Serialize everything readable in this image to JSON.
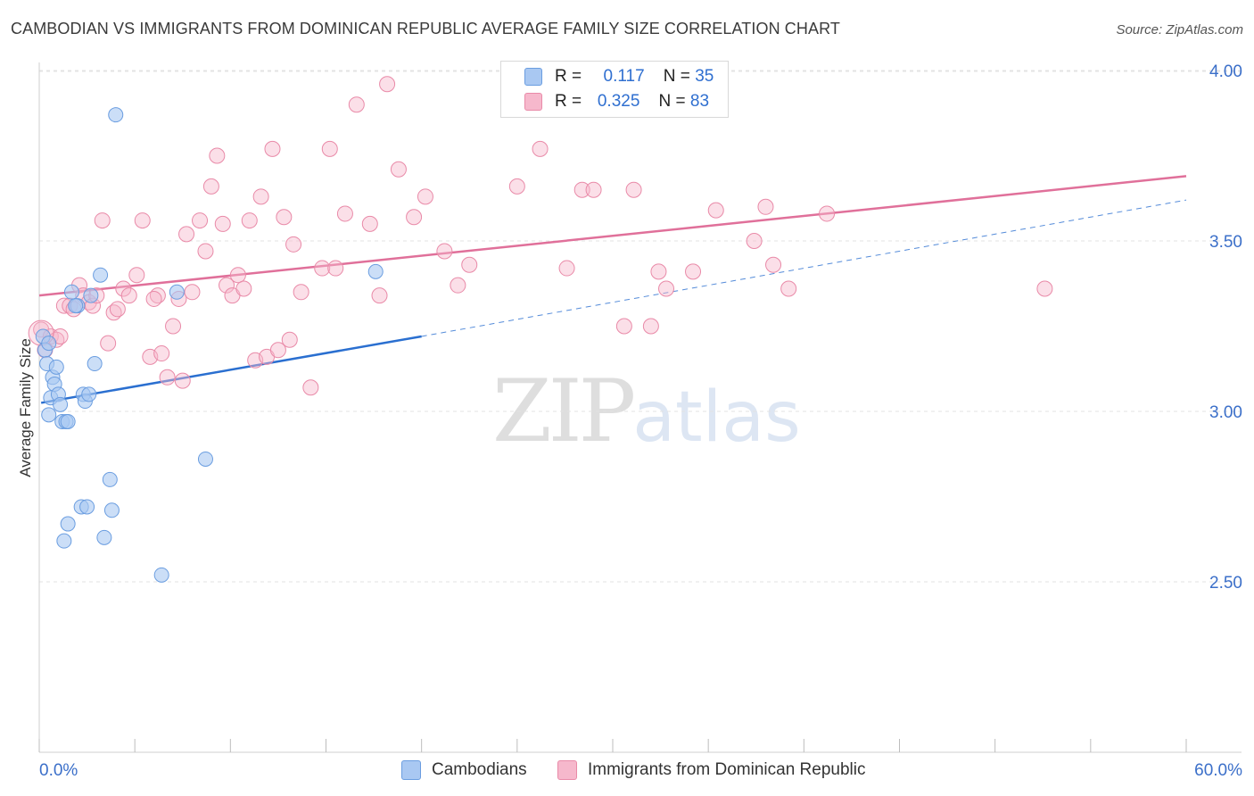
{
  "title": "CAMBODIAN VS IMMIGRANTS FROM DOMINICAN REPUBLIC AVERAGE FAMILY SIZE CORRELATION CHART",
  "source": "Source: ZipAtlas.com",
  "watermark": {
    "zip": "ZIP",
    "atlas": "atlas"
  },
  "legend": {
    "rows": [
      {
        "r_label": "R =",
        "r_value": "0.117",
        "n_label": "N =",
        "n_value": "35",
        "color": "#a9c8f2"
      },
      {
        "r_label": "R =",
        "r_value": "0.325",
        "n_label": "N =",
        "n_value": "83",
        "color": "#f6b8cc"
      }
    ]
  },
  "bottom_legend": {
    "series1": "Cambodians",
    "series2": "Immigrants from Dominican Republic"
  },
  "colors": {
    "blue_fill": "#a9c8f2",
    "blue_stroke": "#6a9de0",
    "blue_line": "#2a6fd0",
    "pink_fill": "#f6b8cc",
    "pink_stroke": "#e98aa8",
    "pink_line": "#e0709a",
    "tick_text": "#3b6fc9",
    "grid": "#e3e3e3"
  },
  "chart_data": {
    "type": "scatter",
    "title": "CAMBODIAN VS IMMIGRANTS FROM DOMINICAN REPUBLIC AVERAGE FAMILY SIZE CORRELATION CHART",
    "xlabel": "",
    "ylabel": "Average Family Size",
    "xlim": [
      0,
      60
    ],
    "ylim": [
      2.0,
      4.15
    ],
    "x_tick_labels": [
      "0.0%",
      "60.0%"
    ],
    "y_ticks": [
      2.5,
      3.0,
      3.5,
      4.0
    ],
    "y_tick_labels": [
      "2.50",
      "3.00",
      "3.50",
      "4.00"
    ],
    "grid": true,
    "legend_position": "top-center",
    "series": [
      {
        "name": "Cambodians",
        "R": 0.117,
        "N": 35,
        "trend": {
          "x0": 0.1,
          "y0": 3.025,
          "x1": 20,
          "y1": 3.22,
          "dash_to_x": 60,
          "dash_to_y": 3.62
        },
        "points": [
          [
            0.2,
            3.22
          ],
          [
            0.3,
            3.18
          ],
          [
            0.4,
            3.14
          ],
          [
            0.5,
            3.2
          ],
          [
            0.5,
            2.99
          ],
          [
            0.6,
            3.04
          ],
          [
            0.7,
            3.1
          ],
          [
            0.8,
            3.08
          ],
          [
            0.9,
            3.13
          ],
          [
            1.0,
            3.05
          ],
          [
            1.1,
            3.02
          ],
          [
            1.2,
            2.97
          ],
          [
            1.4,
            2.97
          ],
          [
            1.5,
            2.97
          ],
          [
            1.3,
            2.62
          ],
          [
            1.5,
            2.67
          ],
          [
            1.7,
            3.35
          ],
          [
            2.0,
            3.31
          ],
          [
            2.2,
            2.72
          ],
          [
            2.3,
            3.05
          ],
          [
            2.4,
            3.03
          ],
          [
            2.5,
            2.72
          ],
          [
            2.6,
            3.05
          ],
          [
            2.7,
            3.34
          ],
          [
            2.9,
            3.14
          ],
          [
            3.2,
            3.4
          ],
          [
            3.4,
            2.63
          ],
          [
            3.7,
            2.8
          ],
          [
            3.8,
            2.71
          ],
          [
            4.0,
            3.87
          ],
          [
            6.4,
            2.52
          ],
          [
            7.2,
            3.35
          ],
          [
            8.7,
            2.86
          ],
          [
            17.6,
            3.41
          ],
          [
            1.9,
            3.31
          ]
        ]
      },
      {
        "name": "Immigrants from Dominican Republic",
        "R": 0.325,
        "N": 83,
        "trend": {
          "x0": 0,
          "y0": 3.34,
          "x1": 60,
          "y1": 3.69
        },
        "points": [
          [
            0.1,
            3.24
          ],
          [
            0.3,
            3.18
          ],
          [
            0.6,
            3.22
          ],
          [
            0.9,
            3.21
          ],
          [
            1.1,
            3.22
          ],
          [
            1.3,
            3.31
          ],
          [
            1.6,
            3.31
          ],
          [
            1.8,
            3.3
          ],
          [
            2.1,
            3.37
          ],
          [
            2.3,
            3.34
          ],
          [
            2.6,
            3.32
          ],
          [
            2.8,
            3.31
          ],
          [
            3.3,
            3.56
          ],
          [
            3.6,
            3.2
          ],
          [
            3.9,
            3.29
          ],
          [
            4.1,
            3.3
          ],
          [
            4.4,
            3.36
          ],
          [
            4.7,
            3.34
          ],
          [
            5.1,
            3.4
          ],
          [
            5.4,
            3.56
          ],
          [
            5.8,
            3.16
          ],
          [
            6.2,
            3.34
          ],
          [
            6.4,
            3.17
          ],
          [
            6.7,
            3.1
          ],
          [
            7.0,
            3.25
          ],
          [
            7.3,
            3.33
          ],
          [
            7.5,
            3.09
          ],
          [
            7.7,
            3.52
          ],
          [
            8.0,
            3.35
          ],
          [
            8.4,
            3.56
          ],
          [
            8.7,
            3.47
          ],
          [
            9.0,
            3.66
          ],
          [
            9.3,
            3.75
          ],
          [
            9.6,
            3.55
          ],
          [
            9.8,
            3.37
          ],
          [
            10.1,
            3.34
          ],
          [
            10.4,
            3.4
          ],
          [
            10.7,
            3.36
          ],
          [
            11.0,
            3.56
          ],
          [
            11.3,
            3.15
          ],
          [
            11.6,
            3.63
          ],
          [
            11.9,
            3.16
          ],
          [
            12.2,
            3.77
          ],
          [
            12.5,
            3.18
          ],
          [
            12.8,
            3.57
          ],
          [
            13.1,
            3.21
          ],
          [
            13.3,
            3.49
          ],
          [
            13.7,
            3.35
          ],
          [
            14.2,
            3.07
          ],
          [
            14.8,
            3.42
          ],
          [
            15.2,
            3.77
          ],
          [
            15.5,
            3.42
          ],
          [
            16.0,
            3.58
          ],
          [
            16.6,
            3.9
          ],
          [
            17.3,
            3.55
          ],
          [
            17.8,
            3.34
          ],
          [
            18.2,
            3.96
          ],
          [
            18.8,
            3.71
          ],
          [
            19.6,
            3.57
          ],
          [
            20.2,
            3.63
          ],
          [
            21.2,
            3.47
          ],
          [
            21.9,
            3.37
          ],
          [
            22.5,
            3.43
          ],
          [
            25.0,
            3.66
          ],
          [
            26.2,
            3.77
          ],
          [
            27.6,
            3.42
          ],
          [
            28.4,
            3.65
          ],
          [
            29.0,
            3.65
          ],
          [
            30.6,
            3.25
          ],
          [
            31.1,
            3.65
          ],
          [
            32.0,
            3.25
          ],
          [
            32.4,
            3.41
          ],
          [
            32.8,
            3.36
          ],
          [
            34.2,
            3.41
          ],
          [
            35.4,
            3.59
          ],
          [
            37.4,
            3.5
          ],
          [
            38.0,
            3.6
          ],
          [
            38.4,
            3.43
          ],
          [
            39.2,
            3.36
          ],
          [
            41.2,
            3.58
          ],
          [
            52.6,
            3.36
          ],
          [
            6.0,
            3.33
          ],
          [
            3.0,
            3.34
          ]
        ]
      }
    ]
  }
}
